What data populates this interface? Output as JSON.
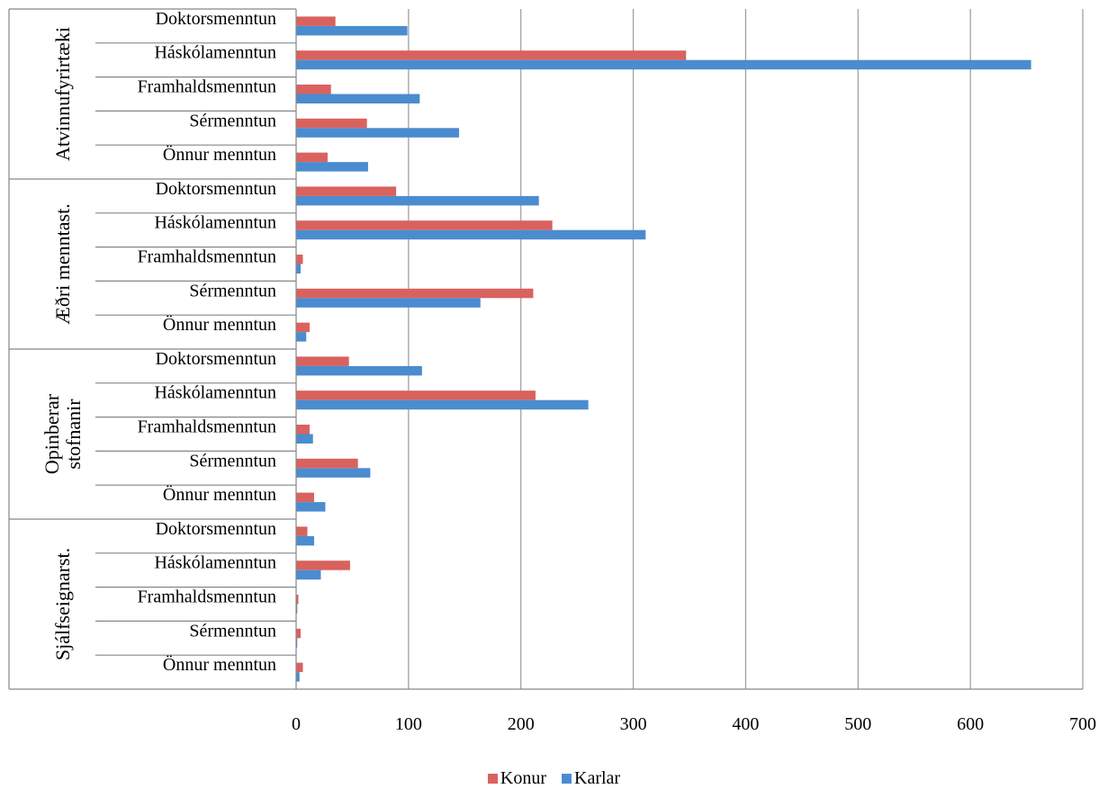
{
  "chart_data": {
    "type": "bar",
    "orientation": "horizontal",
    "title": "",
    "xlabel": "",
    "ylabel": "",
    "xlim": [
      0,
      700
    ],
    "xticks": [
      0,
      100,
      200,
      300,
      400,
      500,
      600,
      700
    ],
    "grid": true,
    "legend_position": "bottom",
    "groups": [
      {
        "name": "Atvinnufyrirtæki",
        "lines": [
          "Atvinnufyrirtæki"
        ],
        "categories": [
          "Doktorsmenntun",
          "Háskólamenntun",
          "Framhaldsmenntun",
          "Sérmenntun",
          "Önnur menntun"
        ],
        "konur": [
          35,
          347,
          31,
          63,
          28
        ],
        "karlar": [
          99,
          654,
          110,
          145,
          64
        ]
      },
      {
        "name": "Æðri menntast.",
        "lines": [
          "Æðri menntast."
        ],
        "categories": [
          "Doktorsmenntun",
          "Háskólamenntun",
          "Framhaldsmenntun",
          "Sérmenntun",
          "Önnur menntun"
        ],
        "konur": [
          89,
          228,
          6,
          211,
          12
        ],
        "karlar": [
          216,
          311,
          4,
          164,
          9
        ]
      },
      {
        "name": "Opinberar stofnanir",
        "lines": [
          "Opinberar",
          "stofnanir"
        ],
        "categories": [
          "Doktorsmenntun",
          "Háskólamenntun",
          "Framhaldsmenntun",
          "Sérmenntun",
          "Önnur menntun"
        ],
        "konur": [
          47,
          213,
          12,
          55,
          16
        ],
        "karlar": [
          112,
          260,
          15,
          66,
          26
        ]
      },
      {
        "name": "Sjálfseignarst.",
        "lines": [
          "Sjálfseignarst."
        ],
        "categories": [
          "Doktorsmenntun",
          "Háskólamenntun",
          "Framhaldsmenntun",
          "Sérmenntun",
          "Önnur menntun"
        ],
        "konur": [
          10,
          48,
          2,
          4,
          6
        ],
        "karlar": [
          16,
          22,
          1,
          1,
          3
        ]
      }
    ],
    "series": [
      {
        "key": "konur",
        "name": "Konur",
        "color": "#d9625e"
      },
      {
        "key": "karlar",
        "name": "Karlar",
        "color": "#4a8ccf"
      }
    ]
  }
}
